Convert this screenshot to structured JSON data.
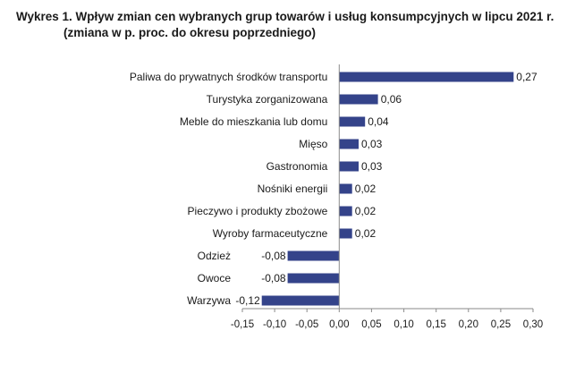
{
  "title": {
    "line1": "Wykres 1. Wpływ zmian cen wybranych grup towarów i usług konsumpcyjnych w lipcu 2021 r.",
    "line2": "(zmiana w p. proc. do okresu poprzedniego)"
  },
  "colors": {
    "bar": "#34438a",
    "axis": "#8a8a8a",
    "text": "#1a1a1a"
  },
  "chart_data": {
    "type": "bar",
    "orientation": "horizontal",
    "title": "Wykres 1. Wpływ zmian cen wybranych grup towarów i usług konsumpcyjnych w lipcu 2021 r. (zmiana w p. proc. do okresu poprzedniego)",
    "categories": [
      "Paliwa do prywatnych środków transportu",
      "Turystyka zorganizowana",
      "Meble do mieszkania lub domu",
      "Mięso",
      "Gastronomia",
      "Nośniki energii",
      "Pieczywo i produkty zbożowe",
      "Wyroby farmaceutyczne",
      "Odzież",
      "Owoce",
      "Warzywa"
    ],
    "values": [
      0.27,
      0.06,
      0.04,
      0.03,
      0.03,
      0.02,
      0.02,
      0.02,
      -0.08,
      -0.08,
      -0.12
    ],
    "value_labels": [
      "0,27",
      "0,06",
      "0,04",
      "0,03",
      "0,03",
      "0,02",
      "0,02",
      "0,02",
      "-0,08",
      "-0,08",
      "-0,12"
    ],
    "xlim": [
      -0.15,
      0.3
    ],
    "xticks": [
      -0.15,
      -0.1,
      -0.05,
      0.0,
      0.05,
      0.1,
      0.15,
      0.2,
      0.25,
      0.3
    ],
    "xtick_labels": [
      "-0,15",
      "-0,10",
      "-0,05",
      "0,00",
      "0,05",
      "0,10",
      "0,15",
      "0,20",
      "0,25",
      "0,30"
    ],
    "grid": false,
    "legend": "none"
  }
}
